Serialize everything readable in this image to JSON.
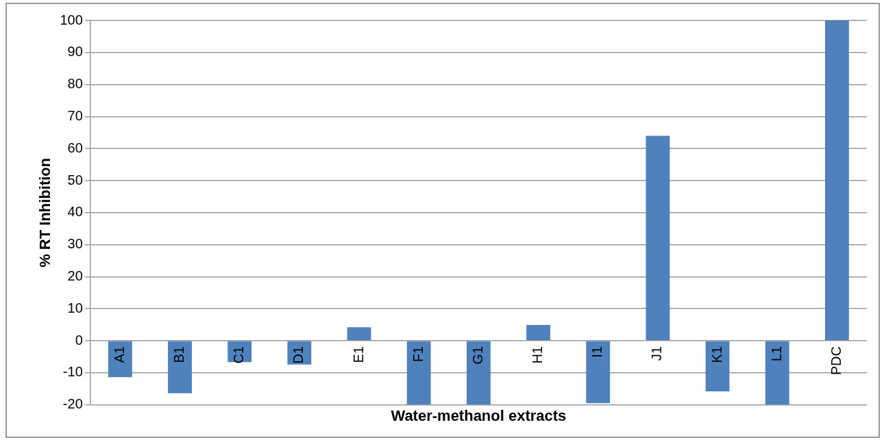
{
  "chart_data": {
    "type": "bar",
    "xlabel": "Water-methanol extracts",
    "ylabel": "% RT Inhibition",
    "categories": [
      "A1",
      "B1",
      "C1",
      "D1",
      "E1",
      "F1",
      "G1",
      "H1",
      "I1",
      "J1",
      "K1",
      "L1",
      "PDC"
    ],
    "values": [
      -11.4,
      -16.4,
      -6.7,
      -7.4,
      4.2,
      -20,
      -20,
      4.9,
      -19.5,
      64,
      -15.8,
      -20,
      100
    ],
    "color": "#4f81bd",
    "ylim": [
      -20,
      100
    ],
    "yticks": [
      -20,
      -10,
      0,
      10,
      20,
      30,
      40,
      50,
      60,
      70,
      80,
      90,
      100
    ],
    "grid": "y",
    "legend": false
  }
}
